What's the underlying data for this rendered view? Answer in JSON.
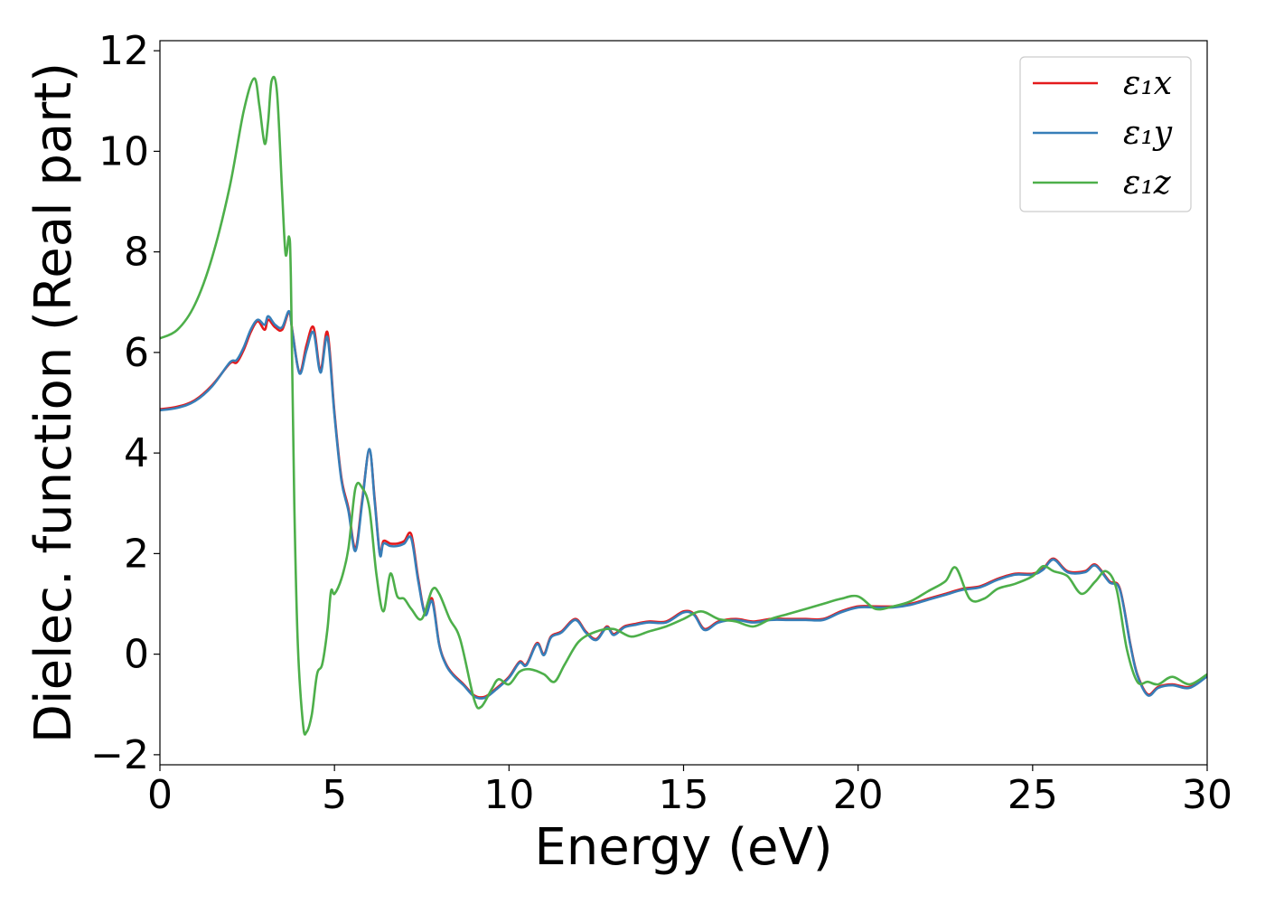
{
  "chart_data": {
    "type": "line",
    "title": "",
    "xlabel": "Energy (eV)",
    "ylabel": "Dielec. function (Real part)",
    "xlim": [
      0,
      30
    ],
    "ylim": [
      -2.2,
      12.2
    ],
    "xticks": [
      0,
      5,
      10,
      15,
      20,
      25,
      30
    ],
    "xtick_labels": [
      "0",
      "5",
      "10",
      "15",
      "20",
      "25",
      "30"
    ],
    "yticks": [
      -2,
      0,
      2,
      4,
      6,
      8,
      10,
      12
    ],
    "ytick_labels": [
      "−2",
      "0",
      "2",
      "4",
      "6",
      "8",
      "10",
      "12"
    ],
    "grid": false,
    "legend_position": "top-right",
    "series": [
      {
        "name": "ε₁x",
        "color": "#e41a1c",
        "x": [
          0,
          0.5,
          1.0,
          1.5,
          2.0,
          2.2,
          2.4,
          2.6,
          2.8,
          3.0,
          3.1,
          3.3,
          3.5,
          3.7,
          3.8,
          4.0,
          4.2,
          4.4,
          4.6,
          4.8,
          5.0,
          5.2,
          5.4,
          5.6,
          5.8,
          6.0,
          6.15,
          6.3,
          6.4,
          6.6,
          6.8,
          7.0,
          7.2,
          7.4,
          7.6,
          7.8,
          8.0,
          8.2,
          8.4,
          8.7,
          9.0,
          9.3,
          9.6,
          10.0,
          10.3,
          10.5,
          10.8,
          11.0,
          11.2,
          11.5,
          11.9,
          12.2,
          12.5,
          12.8,
          13.0,
          13.3,
          13.6,
          14.0,
          14.5,
          15.0,
          15.3,
          15.6,
          16.0,
          16.5,
          17.0,
          17.5,
          18.0,
          18.5,
          19.0,
          19.5,
          20.0,
          20.5,
          21.0,
          21.5,
          22.0,
          22.5,
          23.0,
          23.5,
          24.0,
          24.5,
          25.0,
          25.3,
          25.6,
          26.0,
          26.5,
          26.8,
          27.2,
          27.5,
          27.8,
          28.0,
          28.3,
          28.6,
          29.0,
          29.5,
          30.0
        ],
        "y": [
          4.87,
          4.92,
          5.05,
          5.35,
          5.78,
          5.8,
          6.05,
          6.4,
          6.62,
          6.45,
          6.65,
          6.5,
          6.45,
          6.8,
          6.4,
          5.6,
          6.15,
          6.5,
          5.65,
          6.4,
          4.8,
          3.5,
          2.9,
          2.1,
          3.1,
          4.05,
          3.1,
          2.0,
          2.25,
          2.2,
          2.2,
          2.25,
          2.38,
          1.5,
          0.8,
          1.1,
          0.2,
          -0.2,
          -0.4,
          -0.6,
          -0.82,
          -0.85,
          -0.7,
          -0.45,
          -0.15,
          -0.2,
          0.22,
          0.0,
          0.35,
          0.45,
          0.7,
          0.45,
          0.3,
          0.55,
          0.4,
          0.55,
          0.6,
          0.65,
          0.65,
          0.85,
          0.8,
          0.5,
          0.65,
          0.7,
          0.65,
          0.7,
          0.7,
          0.7,
          0.7,
          0.85,
          0.95,
          0.95,
          0.95,
          1.0,
          1.1,
          1.2,
          1.3,
          1.35,
          1.5,
          1.6,
          1.6,
          1.7,
          1.9,
          1.65,
          1.65,
          1.78,
          1.45,
          1.3,
          0.2,
          -0.4,
          -0.8,
          -0.65,
          -0.6,
          -0.65,
          -0.42
        ]
      },
      {
        "name": "ε₁y",
        "color": "#377eb8",
        "x": [
          0,
          0.5,
          1.0,
          1.5,
          2.0,
          2.2,
          2.4,
          2.6,
          2.8,
          3.0,
          3.1,
          3.3,
          3.5,
          3.7,
          3.8,
          4.0,
          4.2,
          4.4,
          4.6,
          4.8,
          5.0,
          5.2,
          5.4,
          5.6,
          5.8,
          6.0,
          6.15,
          6.3,
          6.4,
          6.6,
          6.8,
          7.0,
          7.2,
          7.4,
          7.6,
          7.8,
          8.0,
          8.2,
          8.4,
          8.7,
          9.0,
          9.3,
          9.6,
          10.0,
          10.3,
          10.5,
          10.8,
          11.0,
          11.2,
          11.5,
          11.9,
          12.2,
          12.5,
          12.8,
          13.0,
          13.3,
          13.6,
          14.0,
          14.5,
          15.0,
          15.3,
          15.6,
          16.0,
          16.5,
          17.0,
          17.5,
          18.0,
          18.5,
          19.0,
          19.5,
          20.0,
          20.5,
          21.0,
          21.5,
          22.0,
          22.5,
          23.0,
          23.5,
          24.0,
          24.5,
          25.0,
          25.3,
          25.6,
          26.0,
          26.5,
          26.8,
          27.2,
          27.5,
          27.8,
          28.0,
          28.3,
          28.6,
          29.0,
          29.5,
          30.0
        ],
        "y": [
          4.85,
          4.9,
          5.03,
          5.33,
          5.8,
          5.85,
          6.1,
          6.45,
          6.65,
          6.55,
          6.72,
          6.55,
          6.5,
          6.82,
          6.38,
          5.58,
          6.05,
          6.4,
          5.6,
          6.3,
          4.75,
          3.45,
          2.85,
          2.05,
          3.05,
          4.08,
          3.05,
          1.98,
          2.2,
          2.15,
          2.15,
          2.2,
          2.3,
          1.45,
          0.78,
          1.05,
          0.18,
          -0.22,
          -0.42,
          -0.62,
          -0.84,
          -0.87,
          -0.72,
          -0.47,
          -0.17,
          -0.22,
          0.2,
          -0.02,
          0.33,
          0.43,
          0.68,
          0.43,
          0.28,
          0.53,
          0.38,
          0.53,
          0.58,
          0.63,
          0.63,
          0.83,
          0.78,
          0.48,
          0.63,
          0.68,
          0.63,
          0.68,
          0.68,
          0.68,
          0.68,
          0.83,
          0.93,
          0.93,
          0.93,
          0.98,
          1.08,
          1.18,
          1.28,
          1.33,
          1.48,
          1.58,
          1.58,
          1.68,
          1.88,
          1.63,
          1.63,
          1.76,
          1.43,
          1.28,
          0.18,
          -0.42,
          -0.82,
          -0.67,
          -0.62,
          -0.67,
          -0.44
        ]
      },
      {
        "name": "ε₁z",
        "color": "#4daf4a",
        "x": [
          0,
          0.5,
          1.0,
          1.5,
          2.0,
          2.4,
          2.7,
          2.85,
          3.0,
          3.1,
          3.2,
          3.35,
          3.5,
          3.6,
          3.7,
          3.75,
          3.85,
          3.95,
          4.1,
          4.2,
          4.35,
          4.5,
          4.65,
          4.8,
          4.9,
          5.0,
          5.2,
          5.4,
          5.6,
          5.8,
          6.0,
          6.2,
          6.4,
          6.6,
          6.8,
          7.0,
          7.2,
          7.5,
          7.8,
          8.0,
          8.3,
          8.6,
          9.0,
          9.2,
          9.5,
          9.7,
          10.0,
          10.3,
          10.6,
          11.0,
          11.3,
          11.6,
          12.0,
          12.5,
          13.0,
          13.5,
          14.0,
          14.5,
          15.0,
          15.5,
          16.0,
          16.5,
          17.0,
          17.5,
          18.0,
          18.5,
          19.0,
          19.5,
          20.0,
          20.5,
          21.0,
          21.5,
          22.0,
          22.5,
          22.8,
          23.2,
          23.6,
          24.0,
          24.5,
          25.0,
          25.3,
          25.6,
          26.0,
          26.4,
          26.8,
          27.1,
          27.4,
          27.7,
          28.0,
          28.3,
          28.6,
          29.0,
          29.5,
          30.0
        ],
        "y": [
          6.28,
          6.45,
          6.95,
          7.9,
          9.3,
          10.8,
          11.45,
          10.9,
          10.15,
          10.6,
          11.4,
          11.2,
          9.2,
          7.95,
          8.3,
          7.5,
          3.0,
          0.2,
          -1.4,
          -1.55,
          -1.2,
          -0.4,
          -0.2,
          0.5,
          1.25,
          1.2,
          1.5,
          2.1,
          3.3,
          3.3,
          2.9,
          1.6,
          0.85,
          1.6,
          1.15,
          1.1,
          0.9,
          0.7,
          1.28,
          1.2,
          0.7,
          0.3,
          -0.9,
          -1.05,
          -0.7,
          -0.5,
          -0.6,
          -0.35,
          -0.3,
          -0.4,
          -0.55,
          -0.2,
          0.25,
          0.45,
          0.5,
          0.35,
          0.45,
          0.55,
          0.7,
          0.85,
          0.7,
          0.65,
          0.55,
          0.7,
          0.8,
          0.9,
          1.0,
          1.1,
          1.15,
          0.9,
          0.95,
          1.05,
          1.25,
          1.45,
          1.72,
          1.1,
          1.1,
          1.3,
          1.4,
          1.55,
          1.75,
          1.65,
          1.55,
          1.2,
          1.45,
          1.65,
          1.3,
          0.1,
          -0.55,
          -0.55,
          -0.6,
          -0.45,
          -0.6,
          -0.4
        ]
      }
    ]
  }
}
